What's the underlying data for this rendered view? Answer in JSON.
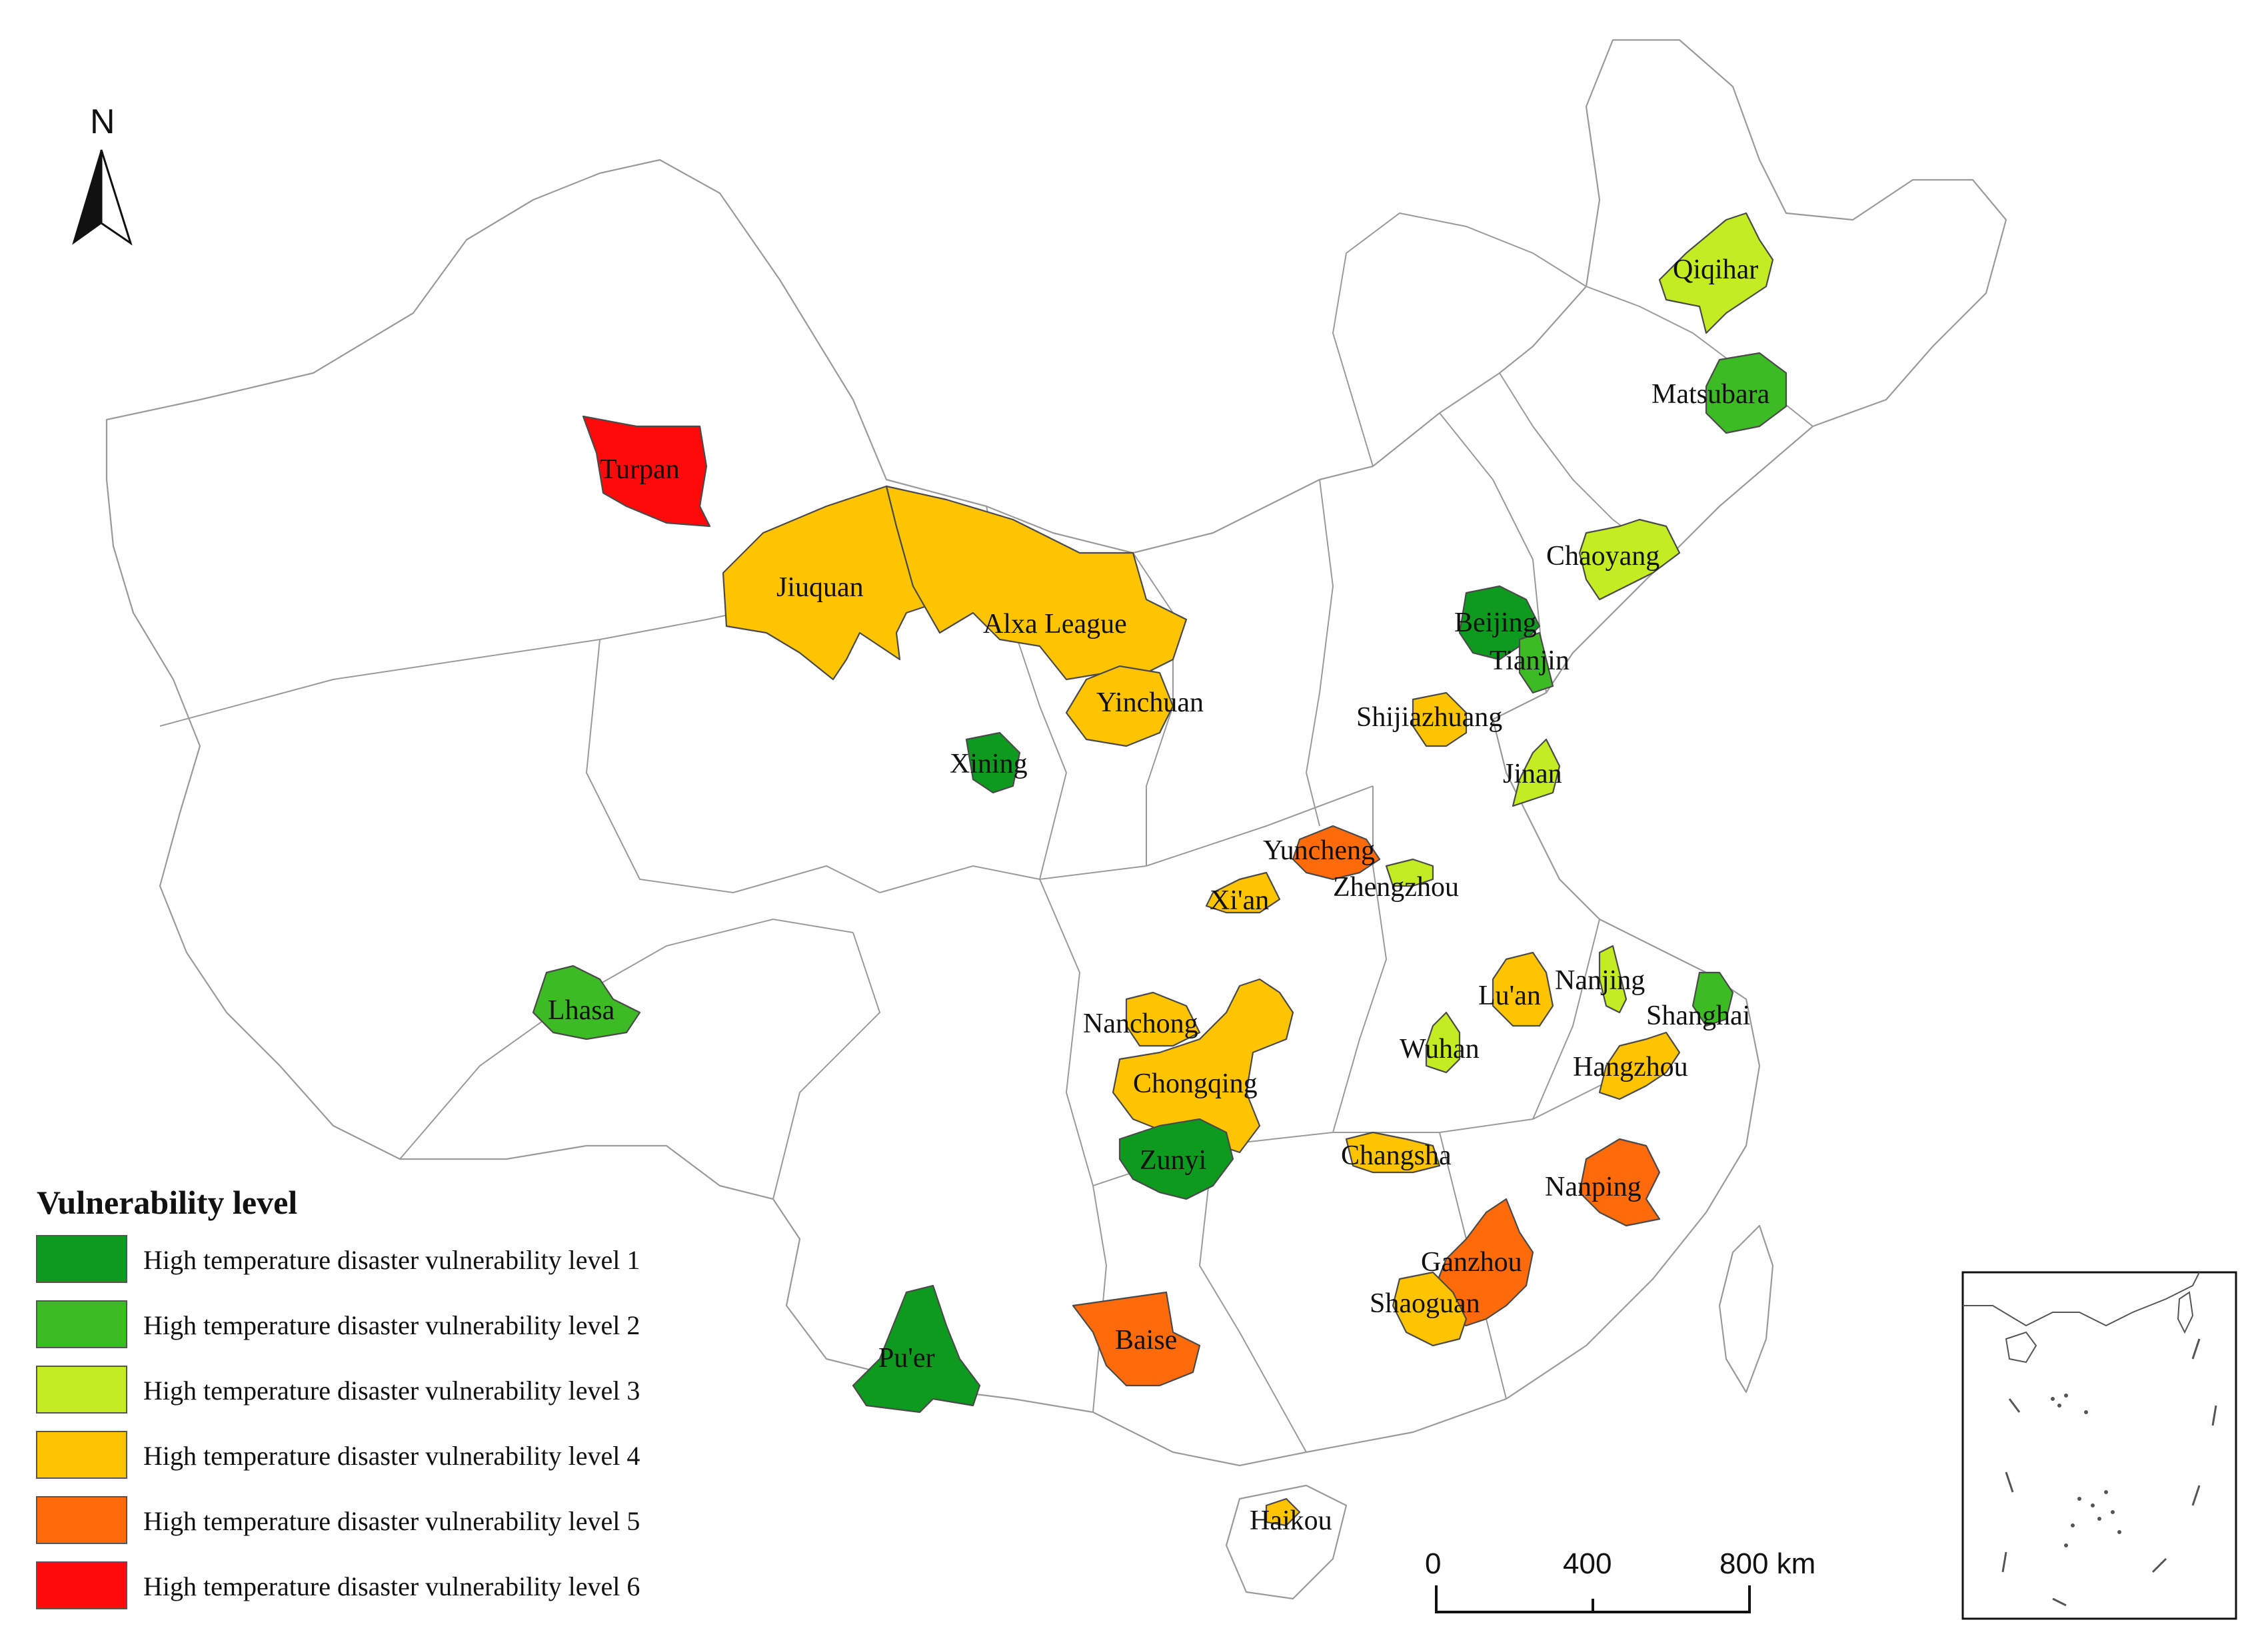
{
  "north_label": "N",
  "legend": {
    "title": "Vulnerability level",
    "items": [
      {
        "label": "High temperature disaster vulnerability level 1",
        "color": "#0d9a1f"
      },
      {
        "label": "High temperature disaster vulnerability level 2",
        "color": "#3dbb25"
      },
      {
        "label": "High temperature disaster vulnerability level 3",
        "color": "#c3ec22"
      },
      {
        "label": "High temperature disaster vulnerability level 4",
        "color": "#ffc400"
      },
      {
        "label": "High temperature disaster vulnerability level 5",
        "color": "#ff6a0a"
      },
      {
        "label": "High temperature disaster vulnerability level 6",
        "color": "#ff0a0a"
      }
    ]
  },
  "scale_bar": {
    "labels": [
      "0",
      "400",
      "800 km"
    ]
  },
  "cities": [
    {
      "name": "Turpan",
      "level": 6
    },
    {
      "name": "Jiuquan",
      "level": 4
    },
    {
      "name": "Alxa League",
      "level": 4
    },
    {
      "name": "Yinchuan",
      "level": 4
    },
    {
      "name": "Xining",
      "level": 1
    },
    {
      "name": "Lhasa",
      "level": 2
    },
    {
      "name": "Pu'er",
      "level": 1
    },
    {
      "name": "Baise",
      "level": 5
    },
    {
      "name": "Haikou",
      "level": 4
    },
    {
      "name": "Qiqihar",
      "level": 3
    },
    {
      "name": "Matsubara",
      "level": 2
    },
    {
      "name": "Chaoyang",
      "level": 3
    },
    {
      "name": "Beijing",
      "level": 1
    },
    {
      "name": "Tianjin",
      "level": 2
    },
    {
      "name": "Shijiazhuang",
      "level": 4
    },
    {
      "name": "Jinan",
      "level": 3
    },
    {
      "name": "Yuncheng",
      "level": 5
    },
    {
      "name": "Zhengzhou",
      "level": 3
    },
    {
      "name": "Xi'an",
      "level": 4
    },
    {
      "name": "Nanchong",
      "level": 4
    },
    {
      "name": "Chongqing",
      "level": 4
    },
    {
      "name": "Zunyi",
      "level": 1
    },
    {
      "name": "Lu'an",
      "level": 4
    },
    {
      "name": "Nanjing",
      "level": 3
    },
    {
      "name": "Shanghai",
      "level": 2
    },
    {
      "name": "Wuhan",
      "level": 3
    },
    {
      "name": "Hangzhou",
      "level": 4
    },
    {
      "name": "Changsha",
      "level": 4
    },
    {
      "name": "Nanping",
      "level": 5
    },
    {
      "name": "Ganzhou",
      "level": 5
    },
    {
      "name": "Shaoguan",
      "level": 4
    }
  ]
}
